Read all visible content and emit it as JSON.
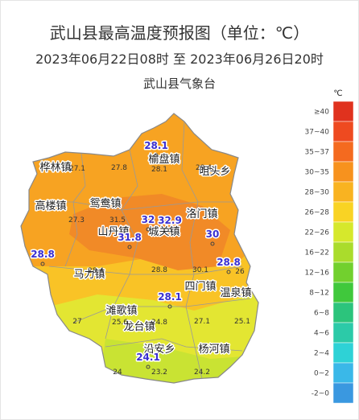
{
  "header": {
    "title": "武山县最高温度预报图（单位：℃）",
    "subtitle": "2023年06月22日08时  至  2023年06月26日20时",
    "issuer": "武山县气象台"
  },
  "legend": {
    "unit": "℃",
    "items": [
      {
        "label": "≥40",
        "color": "#e0321e"
      },
      {
        "label": "37~40",
        "color": "#ee4a20"
      },
      {
        "label": "35~37",
        "color": "#f46a1f"
      },
      {
        "label": "30~35",
        "color": "#f7921e"
      },
      {
        "label": "28~30",
        "color": "#f9b321"
      },
      {
        "label": "26~28",
        "color": "#f9d324"
      },
      {
        "label": "22~26",
        "color": "#d6e82c"
      },
      {
        "label": "16~22",
        "color": "#aadc2c"
      },
      {
        "label": "12~16",
        "color": "#72d02e"
      },
      {
        "label": "8~12",
        "color": "#40c83c"
      },
      {
        "label": "6~8",
        "color": "#2cc47c"
      },
      {
        "label": "4~6",
        "color": "#2ccaa8"
      },
      {
        "label": "2~4",
        "color": "#2ed2d6"
      },
      {
        "label": "0~2",
        "color": "#3ab8e8"
      },
      {
        "label": "-2~0",
        "color": "#3a98e0"
      }
    ]
  },
  "map": {
    "towns": [
      "榆盘镇",
      "咀头乡",
      "桦林镇",
      "高楼镇",
      "鸳鸯镇",
      "洛门镇",
      "山丹镇",
      "城关镇",
      "马力镇",
      "四门镇",
      "温泉镇",
      "滩歌镇",
      "龙台镇",
      "沿安乡",
      "杨河镇"
    ],
    "station_values": [
      "28.1",
      "32",
      "32.9",
      "31.8",
      "30",
      "28.8",
      "28.8",
      "28.1",
      "24.1"
    ],
    "grid_values": [
      "28.1",
      "29.4",
      "27.1",
      "27.8",
      "27.3",
      "31.5",
      "28.4",
      "28.8",
      "30.1",
      "26",
      "25.6",
      "24.8",
      "27.1",
      "25.1",
      "27",
      "24",
      "23.2",
      "24.2"
    ]
  }
}
